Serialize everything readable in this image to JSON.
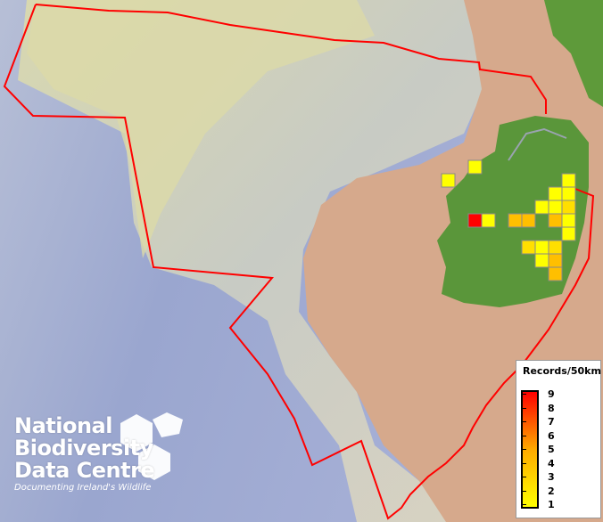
{
  "legend": {
    "title": "Records/50km",
    "ticks": [
      "9",
      "8",
      "7",
      "6",
      "5",
      "4",
      "3",
      "2",
      "1"
    ],
    "color_low": "#ffff00",
    "color_high": "#ff0000"
  },
  "logo": {
    "line1": "National",
    "line2": "Biodiversity",
    "line3": "Data Centre",
    "tagline": "Documenting Ireland's Wildlife"
  },
  "boundary_color": "#ff0000",
  "grid_cells": [
    {
      "col": 2,
      "row": 0,
      "value": 1
    },
    {
      "col": 0,
      "row": 1,
      "value": 1
    },
    {
      "col": 9,
      "row": 1,
      "value": 1
    },
    {
      "col": 8,
      "row": 2,
      "value": 1
    },
    {
      "col": 9,
      "row": 2,
      "value": 1
    },
    {
      "col": 7,
      "row": 3,
      "value": 1
    },
    {
      "col": 8,
      "row": 3,
      "value": 1
    },
    {
      "col": 9,
      "row": 3,
      "value": 2
    },
    {
      "col": 2,
      "row": 4,
      "value": 9
    },
    {
      "col": 3,
      "row": 4,
      "value": 1
    },
    {
      "col": 5,
      "row": 4,
      "value": 3
    },
    {
      "col": 6,
      "row": 4,
      "value": 3
    },
    {
      "col": 8,
      "row": 4,
      "value": 3
    },
    {
      "col": 9,
      "row": 4,
      "value": 1
    },
    {
      "col": 9,
      "row": 5,
      "value": 1
    },
    {
      "col": 6,
      "row": 6,
      "value": 2
    },
    {
      "col": 7,
      "row": 6,
      "value": 1
    },
    {
      "col": 8,
      "row": 6,
      "value": 2
    },
    {
      "col": 7,
      "row": 7,
      "value": 1
    },
    {
      "col": 8,
      "row": 7,
      "value": 3
    },
    {
      "col": 8,
      "row": 8,
      "value": 3
    }
  ]
}
